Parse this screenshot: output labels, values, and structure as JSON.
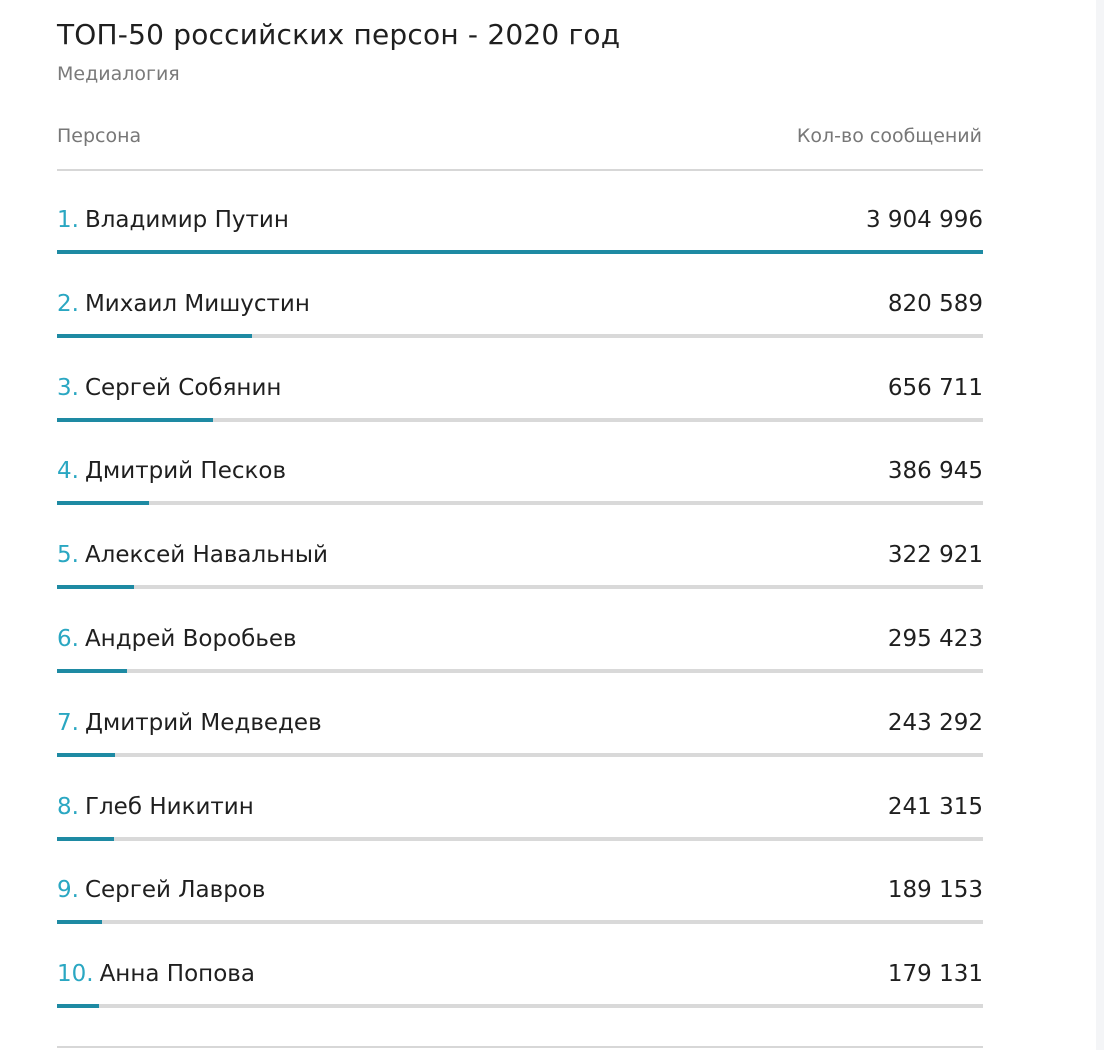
{
  "header": {
    "title": "ТОП-50 российских персон - 2020 год",
    "subtitle": "Медиалогия"
  },
  "columns": {
    "person": "Персона",
    "count": "Кол-во сообщений"
  },
  "colors": {
    "accent_rank": "#2aa7c2",
    "bar_fill": "#1e8aa3",
    "bar_track": "#d9d9d9"
  },
  "chart_data": {
    "type": "bar",
    "title": "ТОП-50 российских персон - 2020 год",
    "subtitle": "Медиалогия",
    "xlabel": "Кол-во сообщений",
    "ylabel": "Персона",
    "orientation": "horizontal",
    "xlim": [
      0,
      3904996
    ],
    "categories": [
      "Владимир Путин",
      "Михаил Мишустин",
      "Сергей Собянин",
      "Дмитрий Песков",
      "Алексей Навальный",
      "Андрей Воробьев",
      "Дмитрий Медведев",
      "Глеб Никитин",
      "Сергей Лавров",
      "Анна Попова"
    ],
    "ranks": [
      "1.",
      "2.",
      "3.",
      "4.",
      "5.",
      "6.",
      "7.",
      "8.",
      "9.",
      "10."
    ],
    "values": [
      3904996,
      820589,
      656711,
      386945,
      322921,
      295423,
      243292,
      241315,
      189153,
      179131
    ],
    "value_labels": [
      "3 904 996",
      "820 589",
      "656 711",
      "386 945",
      "322 921",
      "295 423",
      "243 292",
      "241 315",
      "189 153",
      "179 131"
    ]
  }
}
